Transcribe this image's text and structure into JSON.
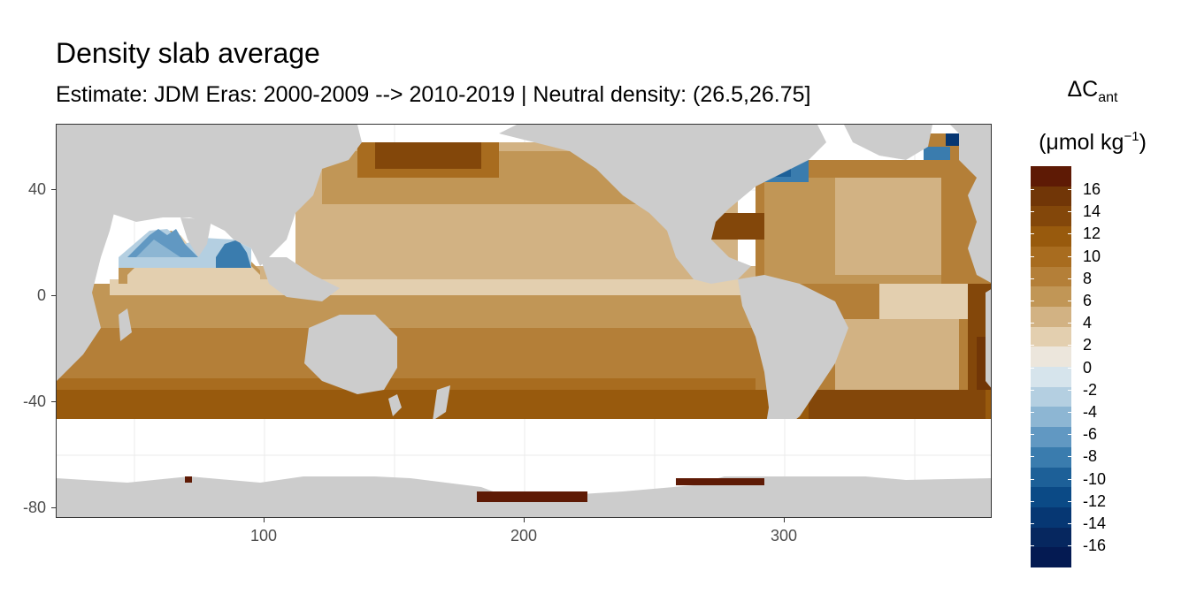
{
  "title": "Density slab average",
  "subtitle": "Estimate: JDM Eras: 2000-2009 --> 2010-2019 | Neutral density: (26.5,26.75]",
  "legend": {
    "title_main": "ΔC",
    "title_sub": "ant",
    "unit_prefix": "(μmol kg",
    "unit_sup": "−1",
    "unit_suffix": ")",
    "labels": [
      "16",
      "14",
      "12",
      "10",
      "8",
      "6",
      "4",
      "2",
      "0",
      "-2",
      "-4",
      "-6",
      "-8",
      "-10",
      "-12",
      "-14",
      "-16"
    ],
    "colors": [
      "#5e1a05",
      "#713607",
      "#83470a",
      "#985a0d",
      "#a86c1f",
      "#b47f38",
      "#c19656",
      "#d2b283",
      "#e3cfaf",
      "#ece6dc",
      "#d6e4ec",
      "#b4cfe1",
      "#8db6d3",
      "#6198c2",
      "#3a7cae",
      "#1d6098",
      "#0b4a86",
      "#063773",
      "#06275f",
      "#041a52"
    ]
  },
  "axes": {
    "y_ticks": [
      "40",
      "0",
      "-40",
      "-80"
    ],
    "x_ticks": [
      "100",
      "200",
      "300"
    ]
  },
  "colors": {
    "land": "#cccccc",
    "panel_border": "#333333",
    "gridline": "#ebebeb"
  },
  "chart_data": {
    "type": "heatmap",
    "title": "Density slab average",
    "subtitle": "Estimate: JDM Eras: 2000-2009 --> 2010-2019 | Neutral density: (26.5,26.75]",
    "x_axis": {
      "ticks": [
        100,
        200,
        300
      ],
      "range": [
        20,
        380
      ]
    },
    "y_axis": {
      "ticks": [
        40,
        0,
        -40,
        -80
      ],
      "range": [
        -85,
        65
      ]
    },
    "fill_variable": "ΔCant (μmol kg−1)",
    "color_scale": {
      "breaks": [
        16,
        14,
        12,
        10,
        8,
        6,
        4,
        2,
        0,
        -2,
        -4,
        -6,
        -8,
        -10,
        -12,
        -14,
        -16
      ],
      "palette": "brown-blue diverging"
    },
    "grid": true,
    "legend_position": "right"
  }
}
